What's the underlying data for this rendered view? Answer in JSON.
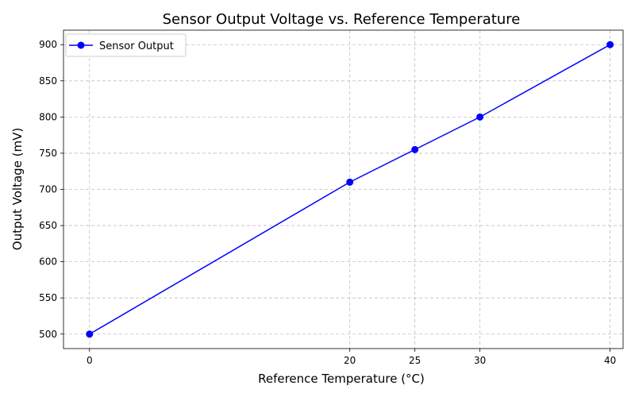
{
  "chart_data": {
    "type": "line",
    "title": "Sensor Output Voltage vs. Reference Temperature",
    "xlabel": "Reference Temperature (°C)",
    "ylabel": "Output Voltage (mV)",
    "xlim": [
      -2,
      41
    ],
    "ylim": [
      480,
      920
    ],
    "xticks": [
      0,
      20,
      25,
      30,
      40
    ],
    "yticks": [
      500,
      550,
      600,
      650,
      700,
      750,
      800,
      850,
      900
    ],
    "grid": true,
    "legend_position": "top-left",
    "series": [
      {
        "name": "Sensor Output",
        "color": "#0000ff",
        "marker": "circle",
        "x": [
          0,
          20,
          25,
          30,
          40
        ],
        "y": [
          500,
          710,
          755,
          800,
          900
        ]
      }
    ]
  }
}
